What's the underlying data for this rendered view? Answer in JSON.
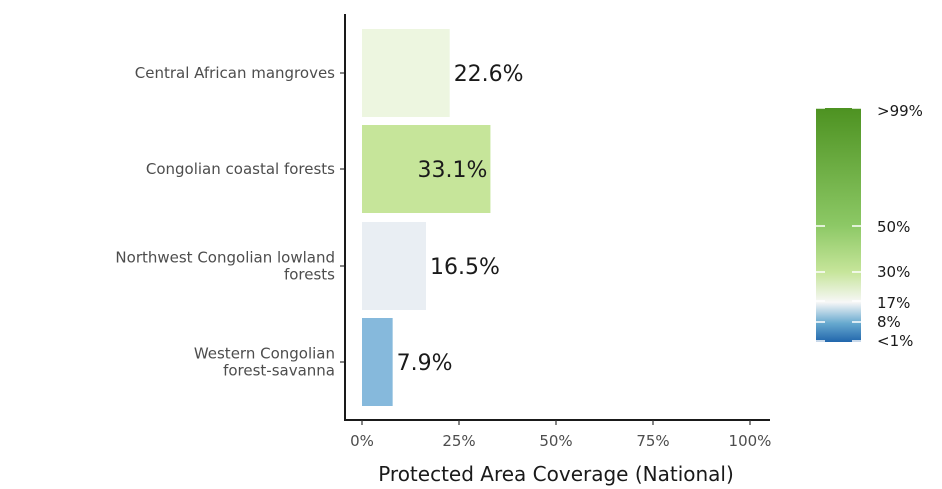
{
  "chart_data": {
    "type": "bar",
    "orientation": "horizontal",
    "categories": [
      "Central African mangroves",
      "Congolian coastal forests",
      "Northwest Congolian lowland forests",
      "Western Congolian forest-savanna"
    ],
    "category_lines": [
      [
        "Central African mangroves"
      ],
      [
        "Congolian coastal forests"
      ],
      [
        "Northwest Congolian lowland",
        "forests"
      ],
      [
        "Western Congolian",
        "forest-savanna"
      ]
    ],
    "values": [
      22.6,
      33.1,
      16.5,
      7.9
    ],
    "value_labels": [
      "22.6%",
      "33.1%",
      "16.5%",
      "7.9%"
    ],
    "bar_colors": [
      "#edf6e0",
      "#c6e59a",
      "#e9eef3",
      "#86b9dc"
    ],
    "xlim": [
      0,
      100
    ],
    "x_ticks": [
      0,
      25,
      50,
      75,
      100
    ],
    "x_tick_labels": [
      "0%",
      "25%",
      "50%",
      "75%",
      "100%"
    ],
    "xlabel": "Protected Area Coverage (National)",
    "grid": false,
    "legend": {
      "type": "colorbar",
      "placement": "right",
      "labels": [
        ">99%",
        "50%",
        "30%",
        "17%",
        "8%",
        "<1%"
      ],
      "stops": [
        {
          "value": 0,
          "color": "#2166ac"
        },
        {
          "value": 8,
          "color": "#67a9cf"
        },
        {
          "value": 17,
          "color": "#f7f7f7"
        },
        {
          "value": 30,
          "color": "#c6e59a"
        },
        {
          "value": 50,
          "color": "#8cc865"
        },
        {
          "value": 100,
          "color": "#4d9221"
        }
      ]
    }
  }
}
